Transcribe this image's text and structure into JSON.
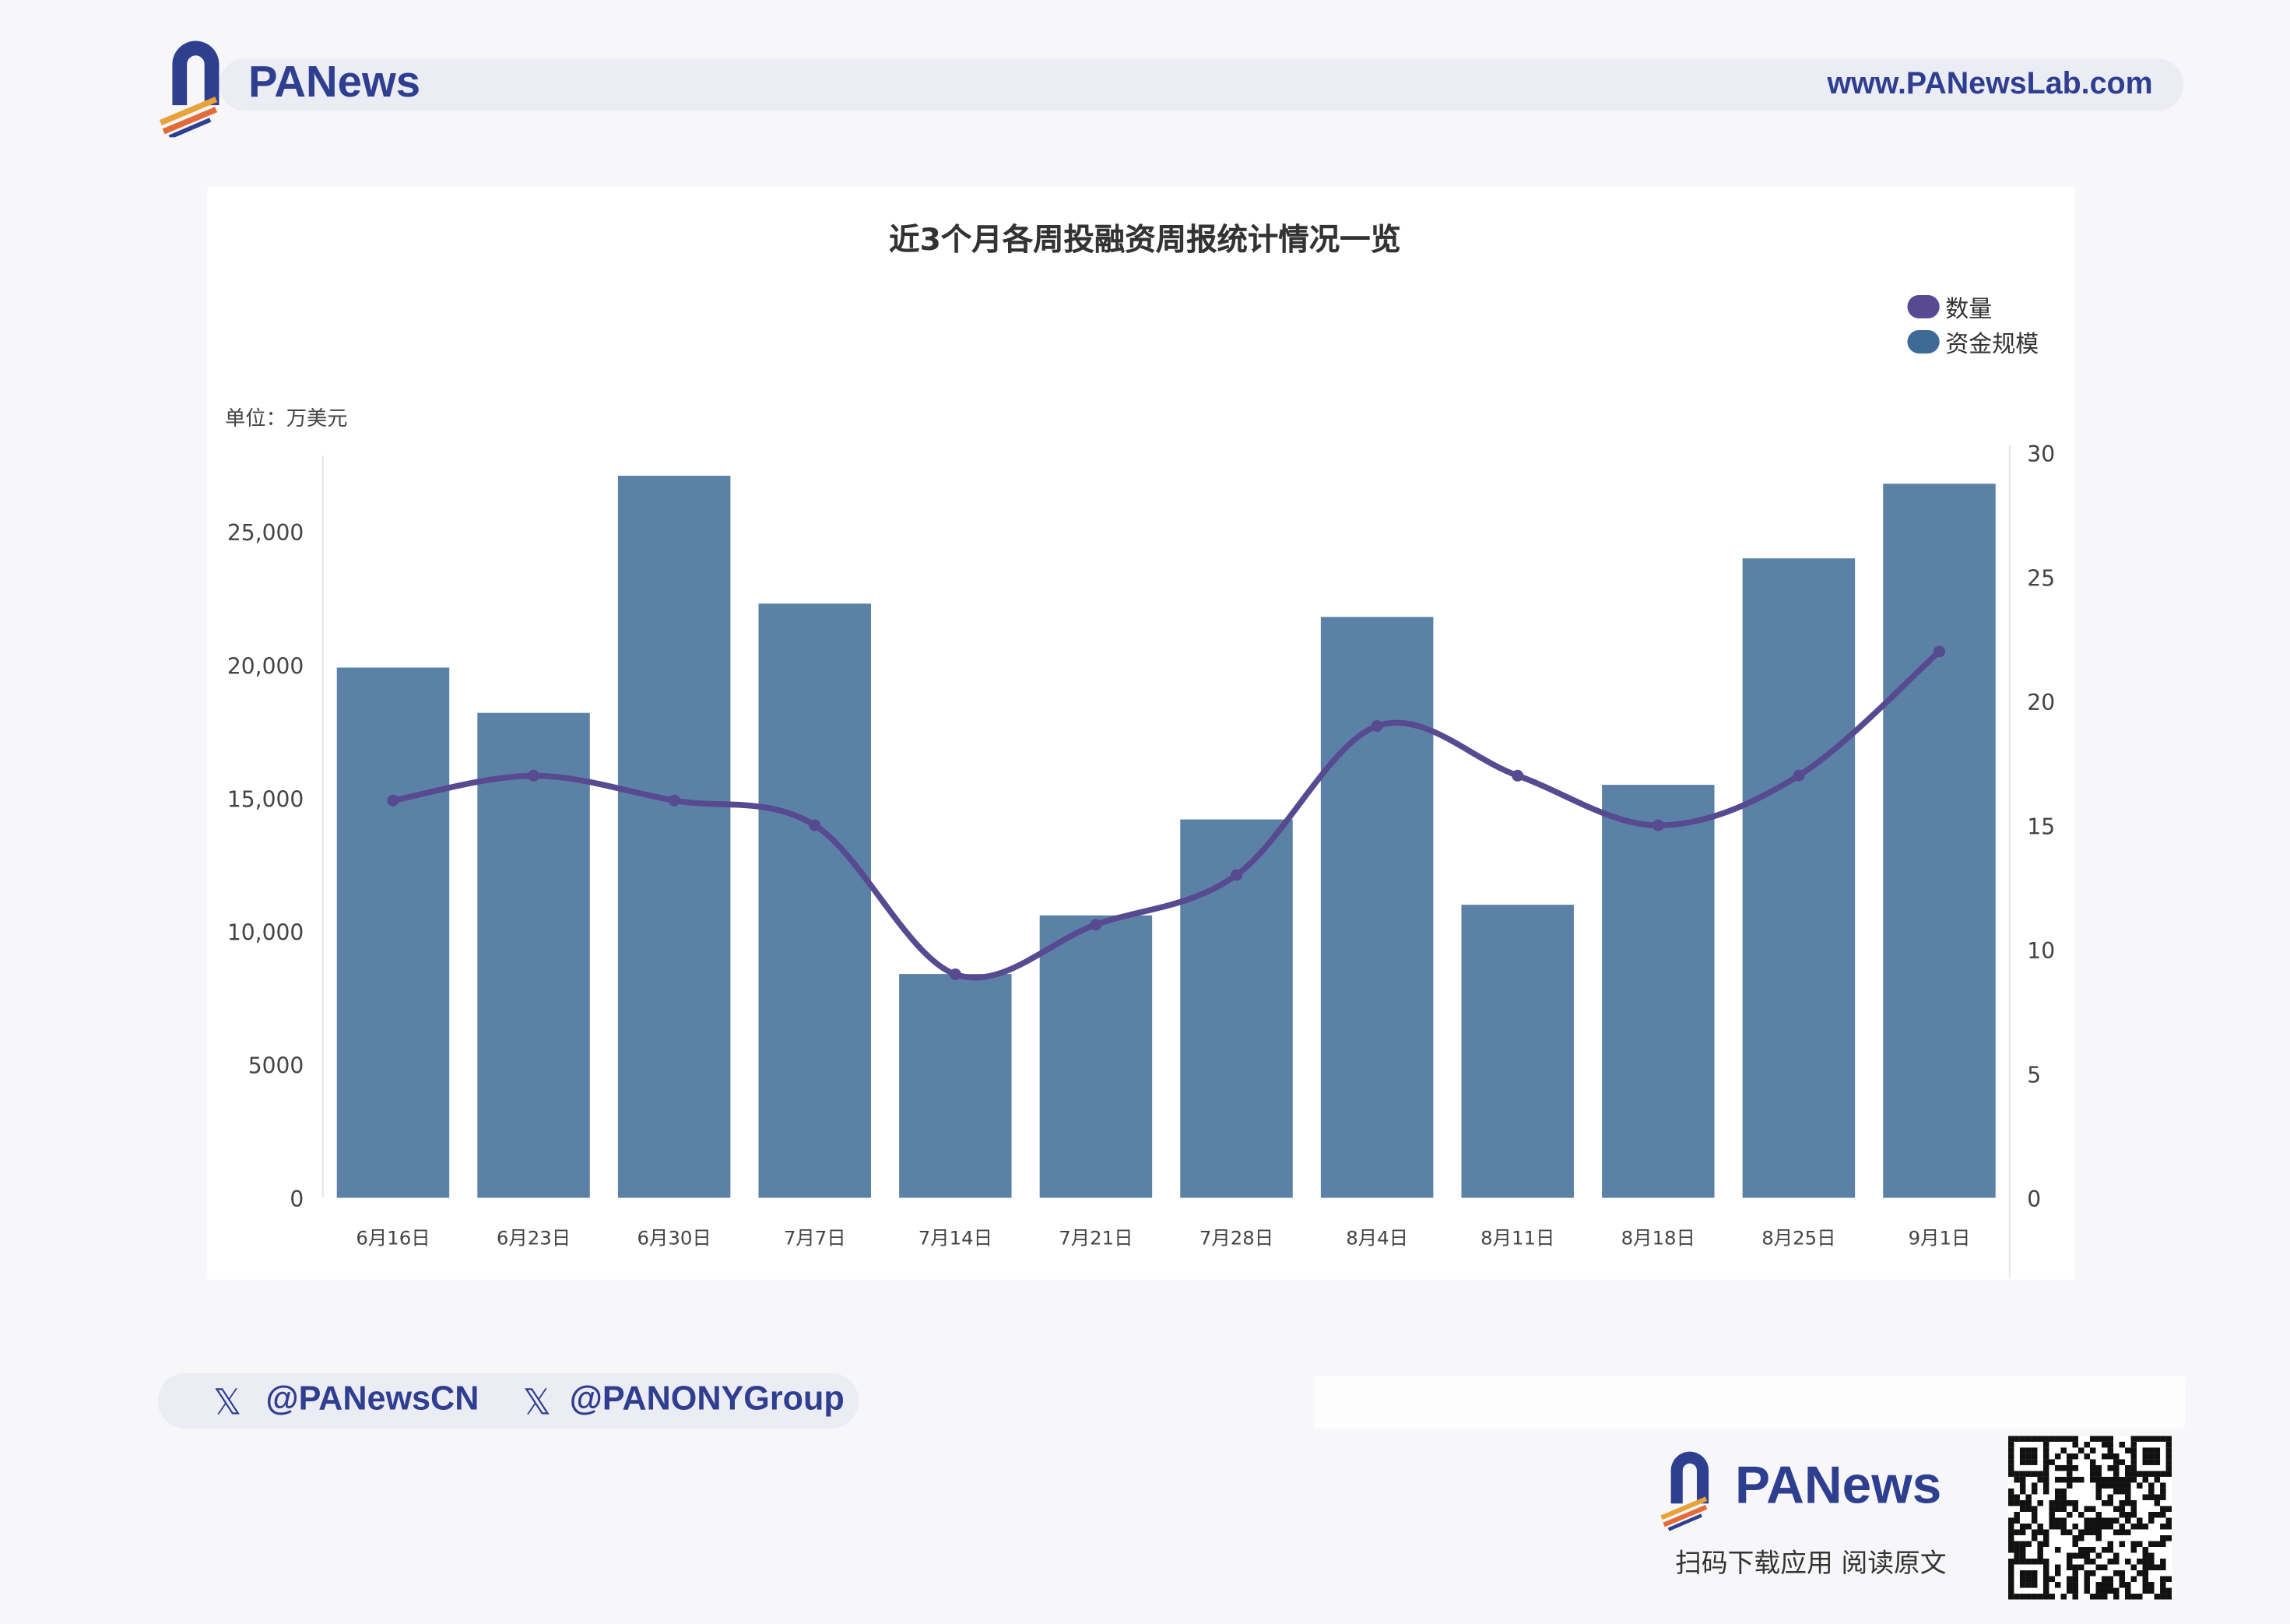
{
  "header": {
    "brand": "PANews",
    "url": "www.PANewsLab.com"
  },
  "chart_data": {
    "type": "bar+line",
    "title": "近3个月各周投融资周报统计情况一览",
    "unit_label": "单位：万美元",
    "categories": [
      "6月16日",
      "6月23日",
      "6月30日",
      "7月7日",
      "7月14日",
      "7月21日",
      "7月28日",
      "8月4日",
      "8月11日",
      "8月18日",
      "8月25日",
      "9月1日"
    ],
    "series": [
      {
        "name": "资金规模",
        "type": "bar",
        "axis": "left",
        "color": "#5b82a6",
        "values": [
          19900,
          18200,
          27100,
          22300,
          8400,
          10600,
          14200,
          21800,
          11000,
          15500,
          24000,
          26800
        ]
      },
      {
        "name": "数量",
        "type": "line",
        "axis": "right",
        "color": "#574a90",
        "values": [
          16,
          17,
          16,
          15,
          9,
          11,
          13,
          19,
          17,
          15,
          17,
          22
        ]
      }
    ],
    "y_left": {
      "range": [
        0,
        28000
      ],
      "ticks": [
        "0",
        "5000",
        "10,000",
        "15,000",
        "20,000",
        "25,000"
      ],
      "tick_values": [
        0,
        5000,
        10000,
        15000,
        20000,
        25000
      ]
    },
    "y_right": {
      "range": [
        0,
        30
      ],
      "ticks": [
        "0",
        "5",
        "10",
        "15",
        "20",
        "25",
        "30"
      ],
      "tick_values": [
        0,
        5,
        10,
        15,
        20,
        25,
        30
      ]
    },
    "legend": {
      "placement": "top-right",
      "items": [
        {
          "label": "数量",
          "color": "#574a90"
        },
        {
          "label": "资金规模",
          "color": "#3d6a96"
        }
      ]
    },
    "grid": false
  },
  "footer": {
    "handles": [
      "@PANewsCN",
      "@PANONYGroup"
    ],
    "brand": "PANews",
    "scan_text": "扫码下载应用  阅读原文"
  }
}
